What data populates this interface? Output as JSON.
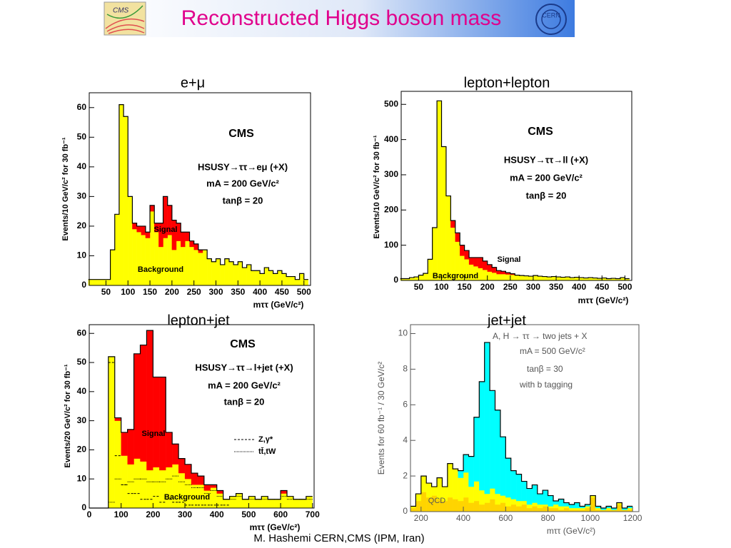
{
  "title": "Reconstructed Higgs boson mass",
  "footer": "M. Hashemi CERN,CMS (IPM, Iran)",
  "chart_data": [
    {
      "type": "histogram",
      "title": "e+μ",
      "y_label": "Events/10 GeV/c² for 30 fb⁻¹",
      "x_label": "mττ (GeV/c²)",
      "annotations": [
        "CMS",
        "HSUSY→ττ→eμ (+X)",
        "mA = 200 GeV/c²",
        "tanβ = 20"
      ],
      "bins": [
        10,
        20,
        30,
        40,
        50,
        60,
        70,
        80,
        90,
        100,
        110,
        120,
        130,
        140,
        150,
        160,
        170,
        180,
        190,
        200,
        210,
        220,
        230,
        240,
        250,
        260,
        270,
        280,
        290,
        300,
        310,
        320,
        330,
        340,
        350,
        360,
        370,
        380,
        390,
        400,
        410,
        420,
        430,
        440,
        450,
        460,
        470,
        480,
        490,
        500,
        510
      ],
      "series": [
        {
          "name": "Background",
          "color": "#ffff00",
          "values": [
            2,
            2,
            2,
            2,
            2,
            12,
            24,
            61,
            57,
            30,
            19,
            18,
            17,
            16,
            25,
            18,
            13,
            16,
            17,
            12,
            15,
            13,
            15,
            13,
            12,
            11,
            12,
            9,
            8,
            9,
            7,
            9,
            8,
            7,
            8,
            6,
            7,
            5,
            5,
            4,
            6,
            5,
            4,
            5,
            4,
            3,
            3,
            2,
            4,
            2
          ]
        },
        {
          "name": "Signal",
          "color": "#ff0000",
          "values": [
            0,
            0,
            0,
            0,
            0,
            0,
            0,
            0,
            0,
            0,
            2,
            2,
            3,
            2,
            2,
            3,
            8,
            14,
            10,
            10,
            6,
            5,
            3,
            2,
            2,
            1,
            0,
            0,
            0,
            0,
            0,
            0,
            0,
            0,
            0,
            0,
            0,
            0,
            0,
            0,
            0,
            0,
            0,
            0,
            0,
            0,
            0,
            0,
            0,
            0
          ]
        }
      ],
      "xlim": [
        12,
        515
      ],
      "xticks": [
        50,
        100,
        150,
        200,
        250,
        300,
        350,
        400,
        450,
        500
      ],
      "ylim": [
        0,
        65
      ],
      "yticks": [
        0,
        10,
        20,
        30,
        40,
        50,
        60
      ]
    },
    {
      "type": "histogram",
      "title": "lepton+lepton",
      "y_label": "Events/10 GeV/c² for 30 fb⁻¹",
      "x_label": "mττ (GeV/c²)",
      "annotations": [
        "CMS",
        "HSUSY→ττ→ll (+X)",
        "mA = 200 GeV/c²",
        "tanβ = 20"
      ],
      "bins": [
        10,
        20,
        30,
        40,
        50,
        60,
        70,
        80,
        90,
        100,
        110,
        120,
        130,
        140,
        150,
        160,
        170,
        180,
        190,
        200,
        210,
        220,
        230,
        240,
        250,
        260,
        270,
        280,
        290,
        300,
        310,
        320,
        330,
        340,
        350,
        360,
        370,
        380,
        390,
        400,
        410,
        420,
        430,
        440,
        450,
        460,
        470,
        480,
        490,
        500,
        510
      ],
      "series": [
        {
          "name": "Background",
          "color": "#ffff00",
          "values": [
            5,
            5,
            8,
            10,
            15,
            20,
            60,
            150,
            510,
            380,
            240,
            150,
            110,
            70,
            60,
            45,
            40,
            35,
            30,
            25,
            22,
            18,
            18,
            17,
            16,
            15,
            14,
            13,
            12,
            14,
            12,
            11,
            10,
            11,
            10,
            9,
            10,
            8,
            9,
            8,
            7,
            8,
            7,
            6,
            7,
            5,
            6,
            5,
            8,
            5
          ]
        },
        {
          "name": "Signal",
          "color": "#ff0000",
          "values": [
            0,
            0,
            0,
            0,
            0,
            0,
            0,
            0,
            0,
            0,
            0,
            20,
            25,
            30,
            25,
            20,
            25,
            30,
            25,
            20,
            15,
            10,
            8,
            5,
            3,
            0,
            0,
            0,
            0,
            0,
            0,
            0,
            0,
            0,
            0,
            0,
            0,
            0,
            0,
            0,
            0,
            0,
            0,
            0,
            0,
            0,
            0,
            0,
            0,
            0
          ]
        }
      ],
      "xlim": [
        12,
        515
      ],
      "xticks": [
        50,
        100,
        150,
        200,
        250,
        300,
        350,
        400,
        450,
        500
      ],
      "ylim": [
        0,
        537
      ],
      "yticks": [
        0,
        100,
        200,
        300,
        400,
        500
      ]
    },
    {
      "type": "histogram",
      "title": "lepton+jet",
      "y_label": "Events/20 GeV/c² for 30 fb⁻¹",
      "x_label": "mττ (GeV/c²)",
      "annotations": [
        "CMS",
        "HSUSY→ττ→l+jet (+X)",
        "mA = 200 GeV/c²",
        "tanβ = 20"
      ],
      "bins": [
        0,
        20,
        40,
        60,
        80,
        100,
        120,
        140,
        160,
        180,
        200,
        220,
        240,
        260,
        280,
        300,
        320,
        340,
        360,
        380,
        400,
        420,
        440,
        460,
        480,
        500,
        520,
        540,
        560,
        580,
        600,
        620,
        640,
        660,
        680,
        700
      ],
      "series": [
        {
          "name": "Background",
          "color": "#ffff00",
          "values": [
            0,
            0,
            0,
            52,
            30,
            18,
            15,
            17,
            16,
            13,
            14,
            13,
            14,
            15,
            12,
            10,
            8,
            8,
            6,
            7,
            5,
            3,
            4,
            5,
            3,
            4,
            3,
            4,
            3,
            3,
            5,
            4,
            3,
            3,
            4
          ]
        },
        {
          "name": "Signal",
          "color": "#ff0000",
          "values": [
            0,
            0,
            0,
            0,
            1,
            8,
            12,
            36,
            40,
            48,
            31,
            32,
            12,
            7,
            5,
            5,
            4,
            3,
            2,
            1,
            1,
            0,
            0,
            0,
            0,
            0,
            0,
            0,
            0,
            0,
            1,
            0,
            0,
            0,
            0
          ]
        },
        {
          "name": "Z,γ*",
          "style": "dashed",
          "values": [
            0,
            0,
            0,
            50,
            18,
            8,
            5,
            5,
            3,
            3,
            4,
            2,
            3,
            2,
            2,
            1,
            1,
            1,
            1,
            1,
            1,
            1,
            0,
            0,
            0,
            0,
            0,
            0,
            0,
            0,
            0,
            0,
            0,
            0,
            0
          ]
        },
        {
          "name": "tt̄,tW",
          "style": "dotted",
          "values": [
            0,
            0,
            0,
            2,
            10,
            8,
            9,
            10,
            10,
            9,
            9,
            9,
            10,
            11,
            9,
            8,
            7,
            7,
            5,
            6,
            4,
            3,
            3,
            4,
            3,
            3,
            3,
            3,
            3,
            3,
            4,
            3,
            3,
            3,
            3
          ]
        }
      ],
      "xlim": [
        0,
        705
      ],
      "xticks": [
        0,
        100,
        200,
        300,
        400,
        500,
        600,
        700
      ],
      "ylim": [
        0,
        63
      ],
      "yticks": [
        0,
        10,
        20,
        30,
        40,
        50,
        60
      ]
    },
    {
      "type": "histogram",
      "title": "jet+jet",
      "y_label": "Events for 60 fb⁻¹ / 30 GeV/c²",
      "x_label": "mττ (GeV/c²)",
      "annotations": [
        "A, H → ττ → two jets + X",
        "mA = 500 GeV/c²",
        "tanβ = 30",
        "with b tagging"
      ],
      "bins": [
        150,
        175,
        200,
        225,
        250,
        275,
        300,
        325,
        350,
        375,
        400,
        425,
        450,
        475,
        500,
        525,
        550,
        575,
        600,
        625,
        650,
        675,
        700,
        725,
        750,
        775,
        800,
        825,
        850,
        875,
        900,
        925,
        950,
        975,
        1000,
        1025,
        1050,
        1075,
        1100,
        1125,
        1150,
        1175,
        1200
      ],
      "series": [
        {
          "name": "QCD",
          "color": "#ffd400",
          "values": [
            0.2,
            0.6,
            1.1,
            0.8,
            0.9,
            0.7,
            0.6,
            0.8,
            0.7,
            0.6,
            0.8,
            0.5,
            0.6,
            0.4,
            0.5,
            0.7,
            0.4,
            0.5,
            0.3,
            0.4,
            0.3,
            0.4,
            0.2,
            0.3,
            0.2,
            0.3,
            0.2,
            0.2,
            0.1,
            0.2,
            0.1,
            0.1,
            0.1,
            0.2,
            0.8,
            0.1,
            0.1,
            0.1,
            0.1,
            0.4,
            0.1,
            0.1
          ]
        },
        {
          "color": "#ffff00",
          "values": [
            0.1,
            0.4,
            0.9,
            0.8,
            0.5,
            1.2,
            0.8,
            1.9,
            1.7,
            1.3,
            1.4,
            0.9,
            1.1,
            0.8,
            0.5,
            0.6,
            0.6,
            0.4,
            0.5,
            0.3,
            0.3,
            0.2,
            0.2,
            0.2,
            0.2,
            0.1,
            0.1,
            0.2,
            0.2,
            0.1,
            0.1,
            0.1,
            0.1,
            0.1,
            0.1,
            0.1,
            0,
            0.1,
            0,
            0.1,
            0,
            0.1
          ]
        },
        {
          "color": "#00ffff",
          "values": [
            0,
            0,
            0,
            0,
            0,
            0,
            0,
            0,
            0,
            0.4,
            1.0,
            1.7,
            3.6,
            6.1,
            8.5,
            5.5,
            4.7,
            3.3,
            2.2,
            1.6,
            1.5,
            1.1,
            0.9,
            1.0,
            0.6,
            0.8,
            0.6,
            0.2,
            0.4,
            0.2,
            0.2,
            0.3,
            0.1,
            0.1,
            0,
            0.1,
            0.1,
            0.1,
            0.1,
            0,
            0.1,
            0.1
          ]
        }
      ],
      "xlim": [
        150,
        1230
      ],
      "xticks": [
        200,
        400,
        600,
        800,
        1000,
        1200
      ],
      "ylim": [
        0,
        10.5
      ],
      "yticks": [
        0,
        2,
        4,
        6,
        8,
        10
      ]
    }
  ]
}
